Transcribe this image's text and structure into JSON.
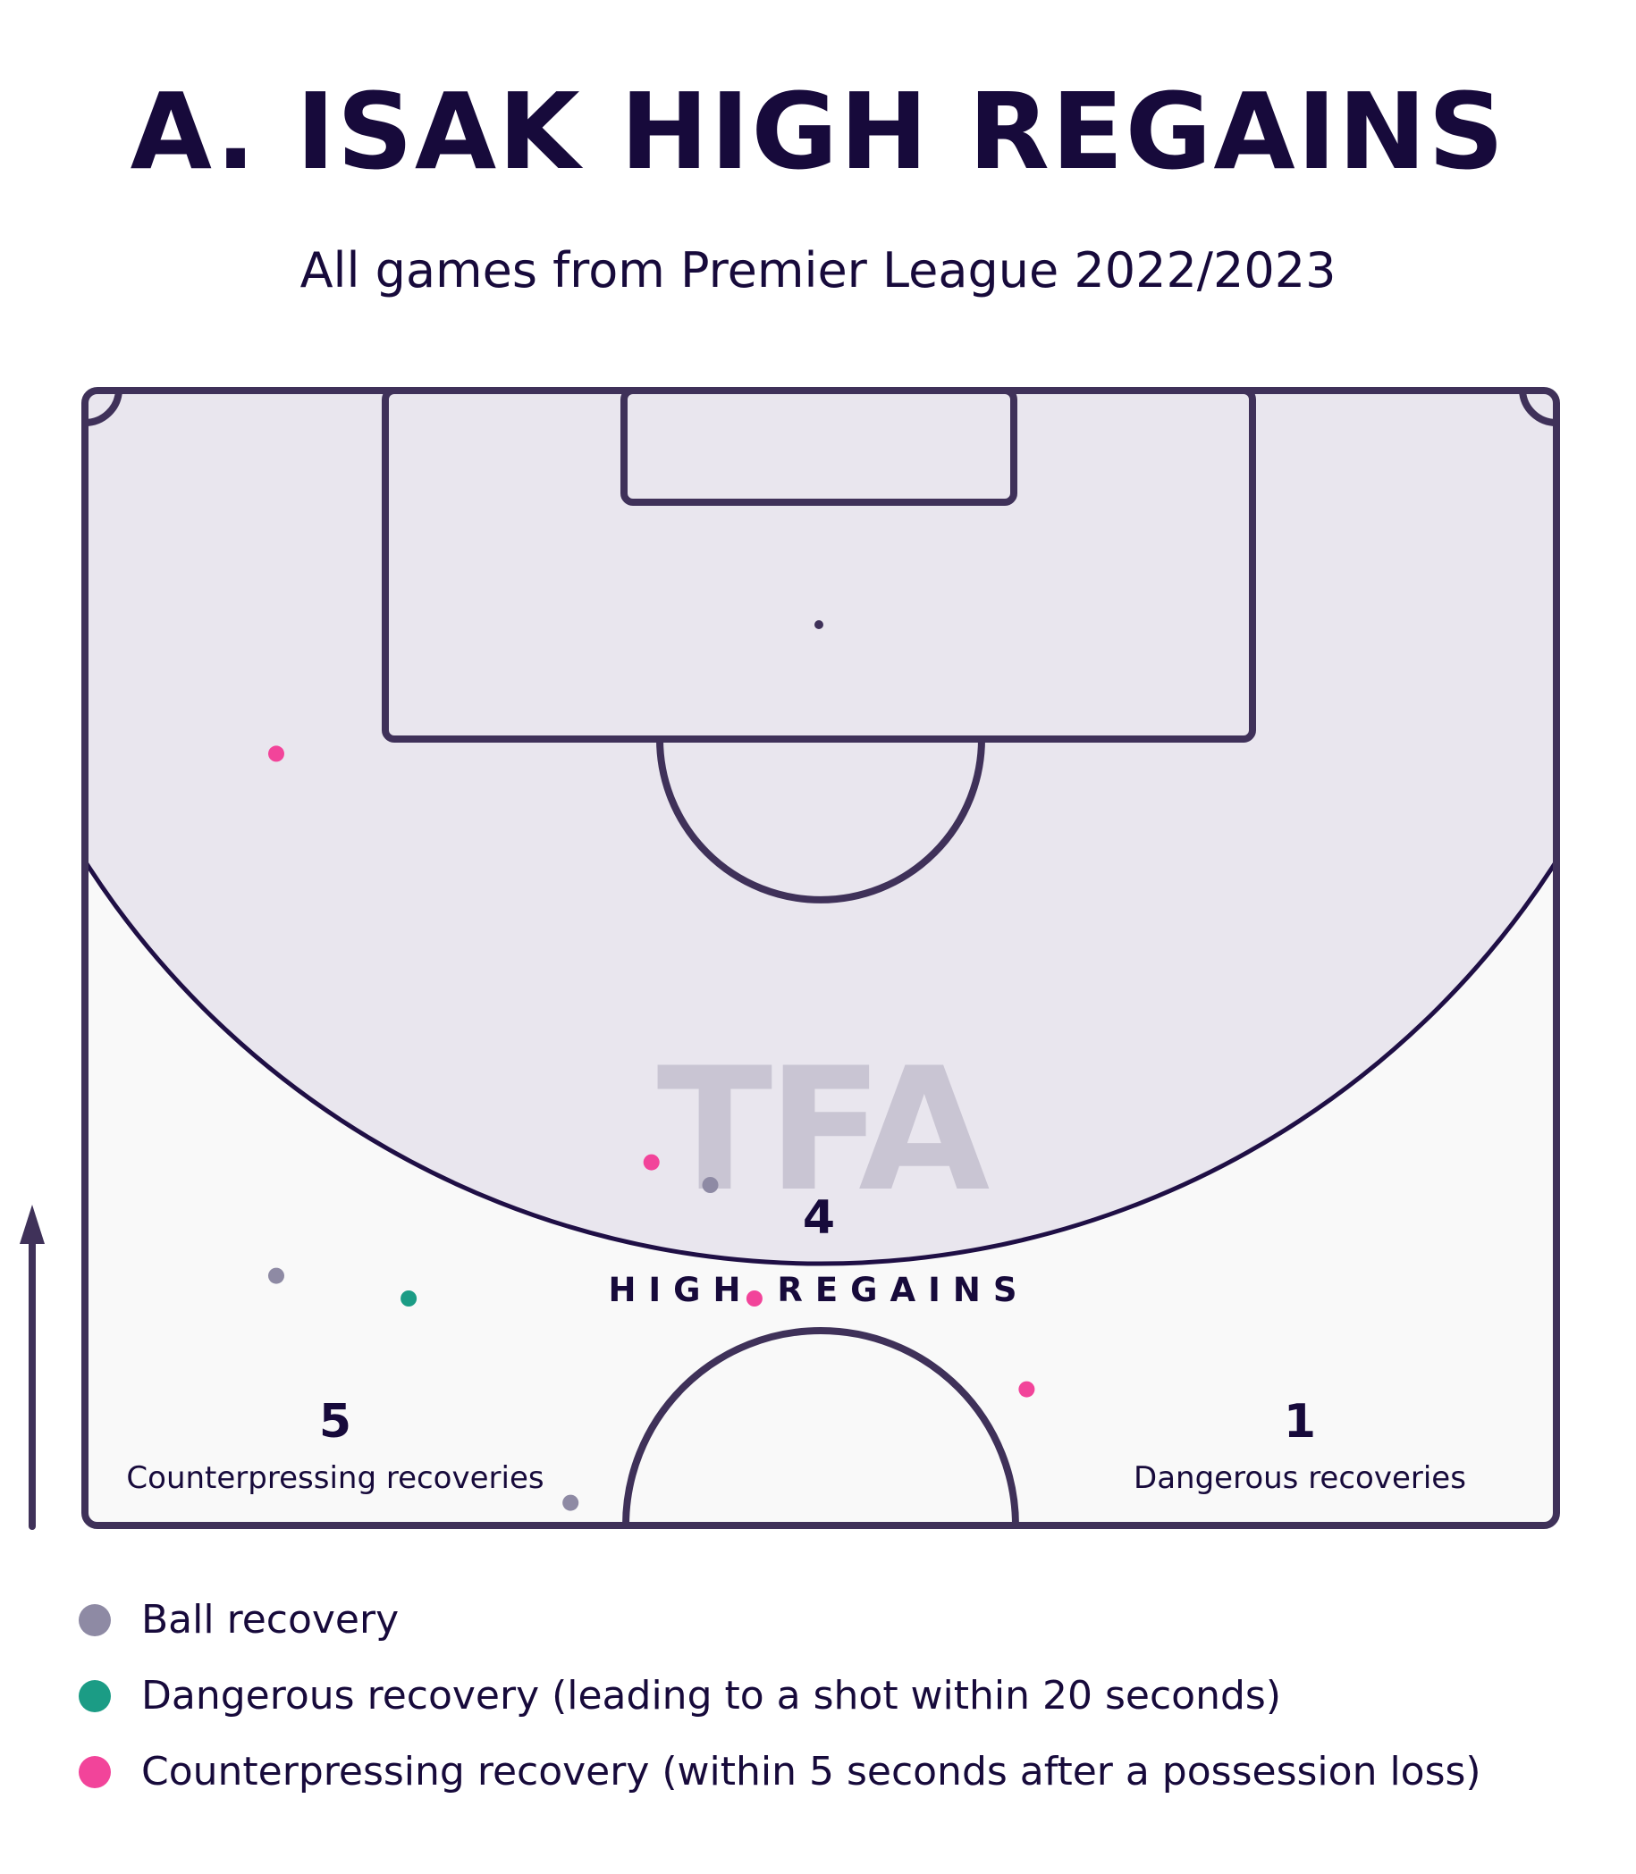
{
  "title": "A. ISAK HIGH REGAINS",
  "subtitle": "All games from Premier League 2022/2023",
  "watermark": "TFA",
  "colors": {
    "ball_recovery": "#8e8aa4",
    "dangerous_recovery": "#1b9c85",
    "counterpressing_recovery": "#f2449a",
    "zone_fill": "#e9e6ee",
    "pitch_fill": "#f9f9f9",
    "line": "#3f3159",
    "text": "#170a3b"
  },
  "stats": {
    "high_regains": {
      "value": "4",
      "label": "HIGH REGAINS"
    },
    "counterpressing": {
      "value": "5",
      "label": "Counterpressing recoveries"
    },
    "dangerous": {
      "value": "1",
      "label": "Dangerous recoveries"
    }
  },
  "legend": [
    {
      "label": "Ball recovery",
      "color": "#8e8aa4"
    },
    {
      "label": "Dangerous recovery (leading to a shot within 20 seconds)",
      "color": "#1b9c85"
    },
    {
      "label": "Counterpressing recovery (within 5 seconds after a possession loss)",
      "color": "#f2449a"
    }
  ],
  "chart_data": {
    "type": "scatter",
    "pitch_view": "attacking half, attacking direction upward",
    "x_range": [
      0,
      100
    ],
    "y_range": [
      50,
      100
    ],
    "points": [
      {
        "x": 13,
        "y": 84,
        "type": "counterpressing"
      },
      {
        "x": 38.5,
        "y": 66,
        "type": "counterpressing"
      },
      {
        "x": 42.5,
        "y": 65,
        "type": "ball"
      },
      {
        "x": 13,
        "y": 61,
        "type": "ball"
      },
      {
        "x": 22,
        "y": 60,
        "type": "dangerous"
      },
      {
        "x": 45.5,
        "y": 60,
        "type": "counterpressing"
      },
      {
        "x": 64,
        "y": 56,
        "type": "counterpressing"
      },
      {
        "x": 33,
        "y": 51,
        "type": "ball"
      }
    ]
  }
}
